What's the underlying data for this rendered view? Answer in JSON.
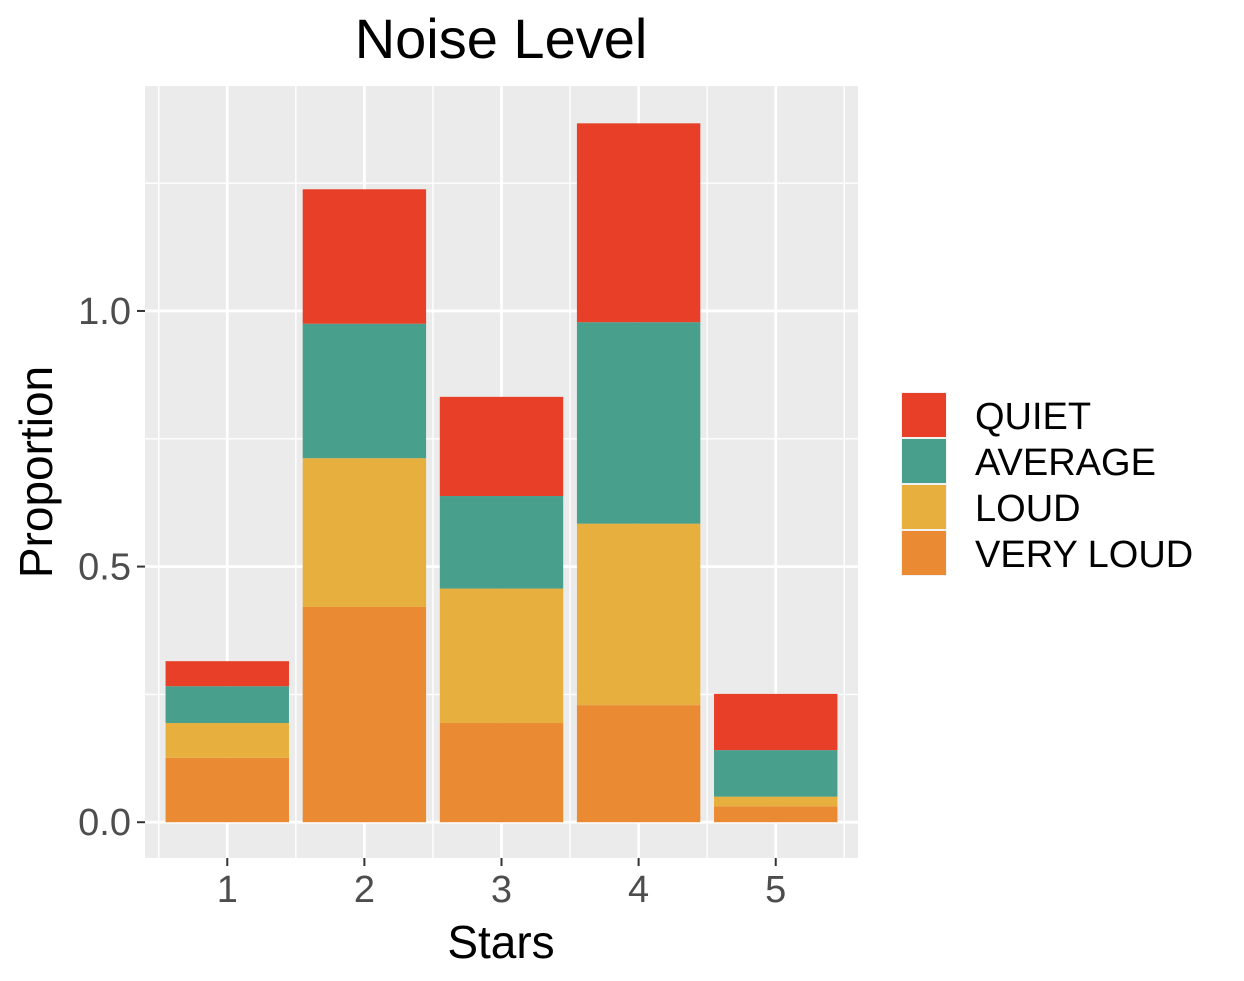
{
  "chart_data": {
    "type": "bar",
    "stacked": true,
    "title": "Noise Level",
    "xlabel": "Stars",
    "ylabel": "Proportion",
    "categories": [
      "1",
      "2",
      "3",
      "4",
      "5"
    ],
    "ylim": [
      -0.07,
      1.44
    ],
    "yticks": [
      0.0,
      0.5,
      1.0
    ],
    "ytick_labels": [
      "0.0",
      "0.5",
      "1.0"
    ],
    "grid": true,
    "panel_background": "#ebebeb",
    "legend_position": "right",
    "series": [
      {
        "name": "VERY LOUD",
        "color": "#ea8a33",
        "values": [
          0.126,
          0.421,
          0.194,
          0.229,
          0.031
        ]
      },
      {
        "name": "LOUD",
        "color": "#e7b03e",
        "values": [
          0.068,
          0.291,
          0.263,
          0.355,
          0.019
        ]
      },
      {
        "name": "AVERAGE",
        "color": "#489f8c",
        "values": [
          0.072,
          0.263,
          0.181,
          0.394,
          0.091
        ]
      },
      {
        "name": "QUIET",
        "color": "#e84028",
        "values": [
          0.049,
          0.263,
          0.194,
          0.389,
          0.11
        ]
      }
    ],
    "legend_order": [
      "QUIET",
      "AVERAGE",
      "LOUD",
      "VERY LOUD"
    ]
  }
}
